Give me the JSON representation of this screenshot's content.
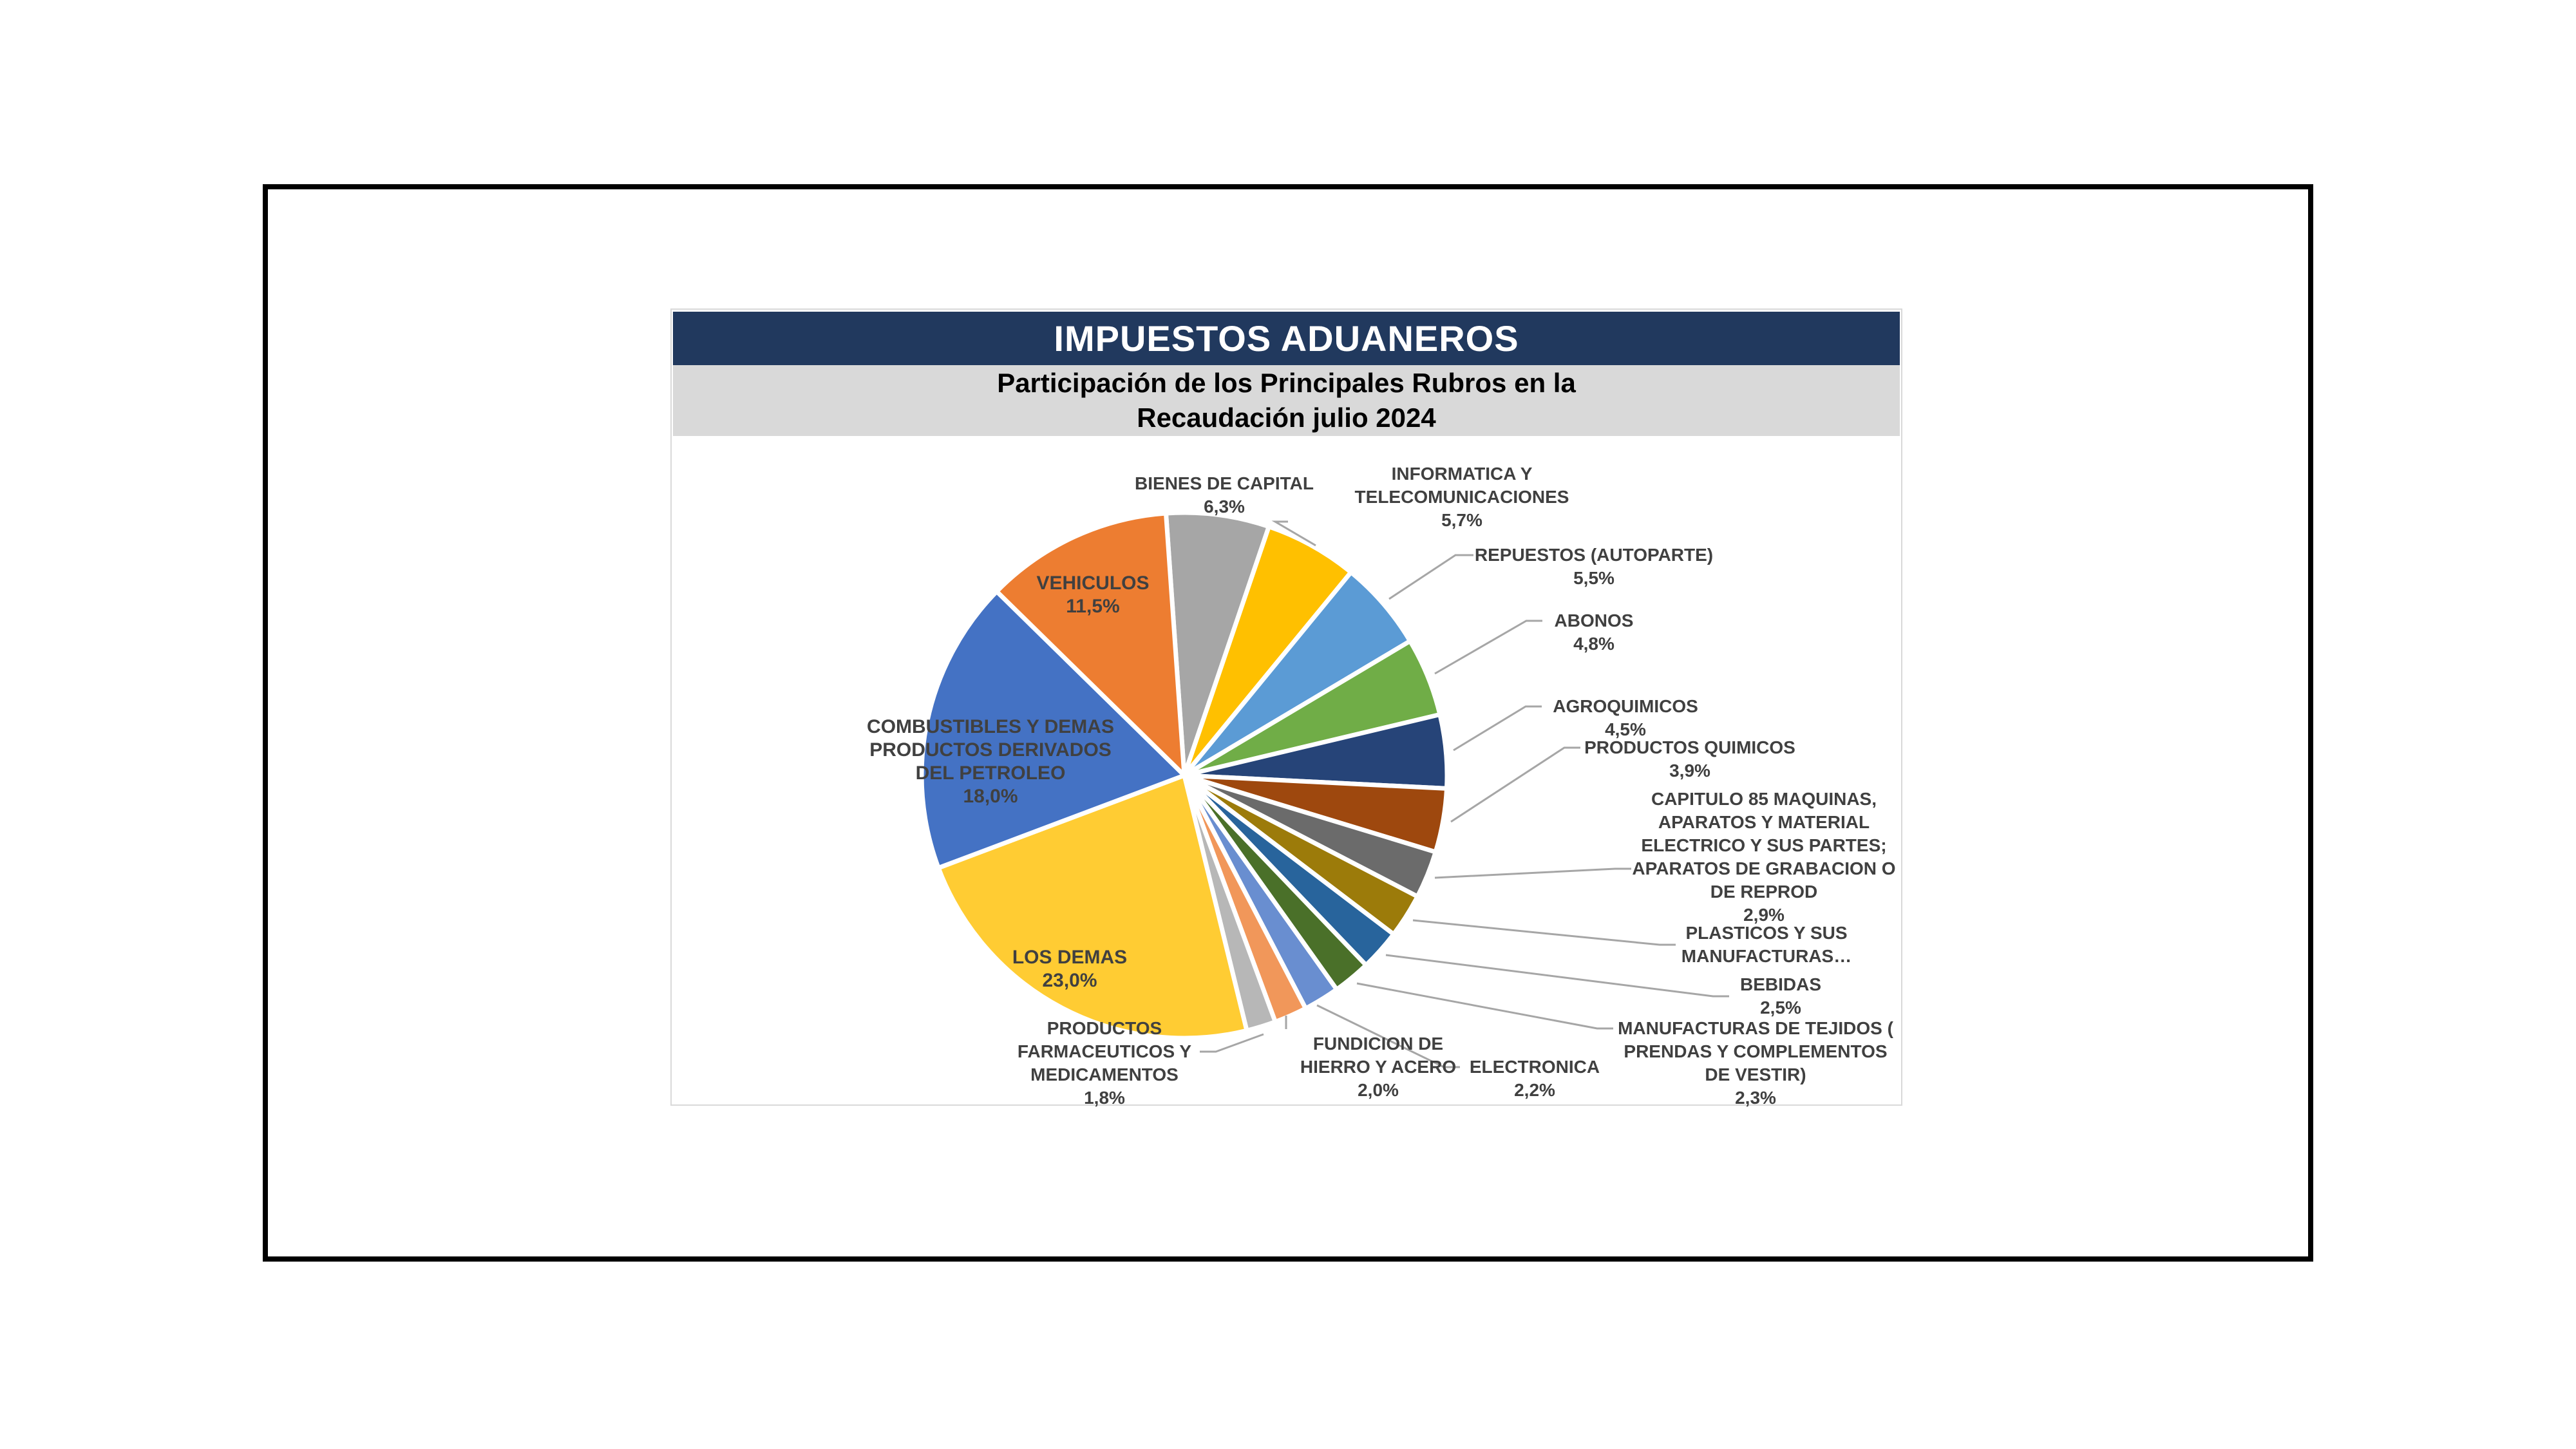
{
  "chart_data": {
    "type": "pie",
    "title": "IMPUESTOS ADUANEROS",
    "subtitle_lines": [
      "Participación de los Principales Rubros en la",
      "Recaudación julio 2024"
    ],
    "unit": "percent",
    "start_angle_deg": -4,
    "direction": "clockwise",
    "style": {
      "title_bg": "#21395e",
      "title_color": "#ffffff",
      "subtitle_bg": "#d9d9d9",
      "subtitle_color": "#000000",
      "label_color": "#404040",
      "leader_line_color": "#a6a6a6",
      "slice_border_color": "#ffffff",
      "chart_border_color": "#d9d9d9",
      "page_frame_color": "#000000"
    },
    "slices": [
      {
        "id": "bienes_de_capital",
        "name": "BIENES DE CAPITAL",
        "value": 6.3,
        "value_label": "6,3%",
        "color": "#a6a6a6",
        "label_placement": "outside",
        "label_lines": [
          "BIENES DE CAPITAL",
          "6,3%"
        ]
      },
      {
        "id": "informatica_y_telecomunicaciones",
        "name": "INFORMATICA Y TELECOMUNICACIONES",
        "value": 5.7,
        "value_label": "5,7%",
        "color": "#ffc000",
        "label_placement": "outside",
        "label_lines": [
          "INFORMATICA Y",
          "TELECOMUNICACIONES",
          "5,7%"
        ]
      },
      {
        "id": "repuestos_autoparte",
        "name": "REPUESTOS (AUTOPARTE)",
        "value": 5.5,
        "value_label": "5,5%",
        "color": "#5b9bd5",
        "label_placement": "outside",
        "label_lines": [
          "REPUESTOS (AUTOPARTE)",
          "5,5%"
        ]
      },
      {
        "id": "abonos",
        "name": "ABONOS",
        "value": 4.8,
        "value_label": "4,8%",
        "color": "#70ad47",
        "label_placement": "outside",
        "label_lines": [
          "ABONOS",
          "4,8%"
        ]
      },
      {
        "id": "agroquimicos",
        "name": "AGROQUIMICOS",
        "value": 4.5,
        "value_label": "4,5%",
        "color": "#264478",
        "label_placement": "outside",
        "label_lines": [
          "AGROQUIMICOS",
          "4,5%"
        ]
      },
      {
        "id": "productos_quimicos",
        "name": "PRODUCTOS QUIMICOS",
        "value": 3.9,
        "value_label": "3,9%",
        "color": "#9e480e",
        "label_placement": "outside",
        "label_lines": [
          "PRODUCTOS QUIMICOS",
          "3,9%"
        ]
      },
      {
        "id": "capitulo_85_maquinas",
        "name": "CAPITULO 85 MAQUINAS, APARATOS Y MATERIAL ELECTRICO Y SUS PARTES; APARATOS DE GRABACION O DE REPROD",
        "value": 2.9,
        "value_label": "2,9%",
        "color": "#6b6b6b",
        "label_placement": "outside",
        "label_lines": [
          "CAPITULO 85 MAQUINAS,",
          "APARATOS Y MATERIAL",
          "ELECTRICO Y SUS PARTES;",
          "APARATOS DE GRABACION O",
          "DE REPROD",
          "2,9%"
        ]
      },
      {
        "id": "plasticos_y_sus_manufacturas",
        "name": "PLASTICOS Y SUS MANUFACTURAS…",
        "value": 2.7,
        "value_label": null,
        "color": "#9c7b0a",
        "label_placement": "outside",
        "label_lines": [
          "PLASTICOS Y SUS",
          "MANUFACTURAS…"
        ]
      },
      {
        "id": "bebidas",
        "name": "BEBIDAS",
        "value": 2.5,
        "value_label": "2,5%",
        "color": "#28649c",
        "label_placement": "outside",
        "label_lines": [
          "BEBIDAS",
          "2,5%"
        ]
      },
      {
        "id": "manufacturas_de_tejidos",
        "name": "MANUFACTURAS DE TEJIDOS ( PRENDAS Y COMPLEMENTOS DE VESTIR)",
        "value": 2.3,
        "value_label": "2,3%",
        "color": "#4a7029",
        "label_placement": "outside",
        "label_lines": [
          "MANUFACTURAS DE TEJIDOS (",
          "PRENDAS Y COMPLEMENTOS",
          "DE VESTIR)",
          "2,3%"
        ]
      },
      {
        "id": "electronica",
        "name": "ELECTRONICA",
        "value": 2.2,
        "value_label": "2,2%",
        "color": "#698ed0",
        "label_placement": "outside",
        "label_lines": [
          "ELECTRONICA",
          "2,2%"
        ]
      },
      {
        "id": "fundicion_de_hierro_y_acero",
        "name": "FUNDICION DE HIERRO Y ACERO",
        "value": 2.0,
        "value_label": "2,0%",
        "color": "#f1975a",
        "label_placement": "outside",
        "label_lines": [
          "FUNDICION DE",
          "HIERRO Y ACERO",
          "2,0%"
        ]
      },
      {
        "id": "productos_farmaceuticos",
        "name": "PRODUCTOS FARMACEUTICOS Y MEDICAMENTOS",
        "value": 1.8,
        "value_label": "1,8%",
        "color": "#b7b7b7",
        "label_placement": "outside",
        "label_lines": [
          "PRODUCTOS",
          "FARMACEUTICOS Y",
          "MEDICAMENTOS",
          "1,8%"
        ]
      },
      {
        "id": "los_demas",
        "name": "LOS DEMAS",
        "value": 23.0,
        "value_label": "23,0%",
        "color": "#ffcc33",
        "label_placement": "inside",
        "label_lines": [
          "LOS DEMAS",
          "23,0%"
        ]
      },
      {
        "id": "combustibles_derivados_petroleo",
        "name": "COMBUSTIBLES Y DEMAS PRODUCTOS DERIVADOS DEL PETROLEO",
        "value": 18.0,
        "value_label": "18,0%",
        "color": "#4472c4",
        "label_placement": "inside",
        "label_lines": [
          "COMBUSTIBLES Y DEMAS",
          "PRODUCTOS DERIVADOS",
          "DEL PETROLEO",
          "18,0%"
        ]
      },
      {
        "id": "vehiculos",
        "name": "VEHICULOS",
        "value": 11.5,
        "value_label": "11,5%",
        "color": "#ed7d31",
        "label_placement": "inside",
        "label_lines": [
          "VEHICULOS",
          "11,5%"
        ]
      }
    ]
  }
}
